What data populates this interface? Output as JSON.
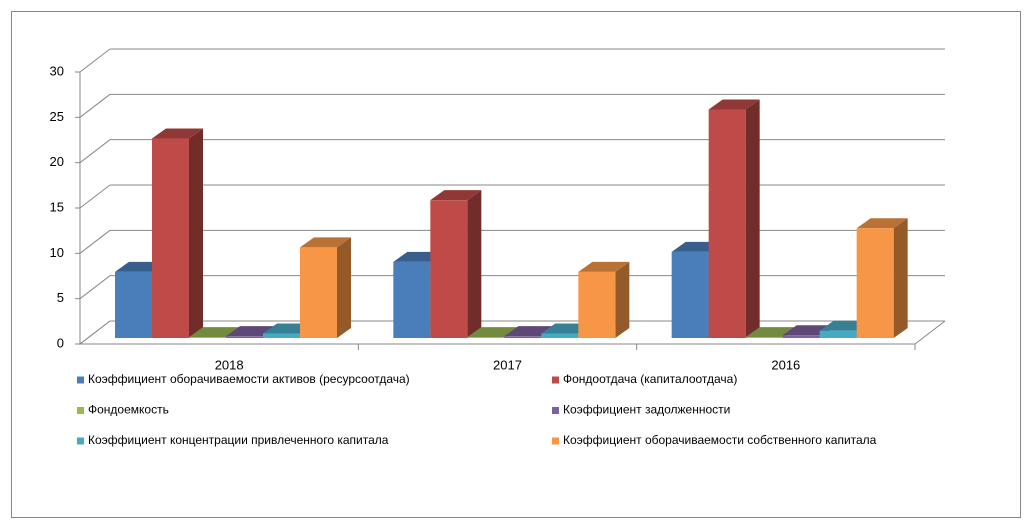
{
  "chart_data": {
    "type": "bar3d",
    "categories": [
      "2018",
      "2017",
      "2016"
    ],
    "series": [
      {
        "name": "Коэффициент оборачиваемости активов (ресурсоотдача)",
        "color": "#4a7ebb",
        "values": [
          7.3,
          8.4,
          9.5
        ]
      },
      {
        "name": "Фондоотдача (капиталоотдача)",
        "color": "#be4b48",
        "values": [
          22.0,
          15.2,
          25.2
        ]
      },
      {
        "name": "Фондоемкость",
        "color": "#98b954",
        "values": [
          0.1,
          0.1,
          0.1
        ]
      },
      {
        "name": "Коэффициент задолженности",
        "color": "#7d60a0",
        "values": [
          0.2,
          0.2,
          0.3
        ]
      },
      {
        "name": "Коэффициент концентрации привлеченного капитала",
        "color": "#46aac5",
        "values": [
          0.5,
          0.5,
          0.8
        ]
      },
      {
        "name": "Коэффициент оборачиваемости собственного капитала",
        "color": "#f79646",
        "values": [
          10.0,
          7.3,
          12.1
        ]
      }
    ],
    "ylim": [
      0,
      30
    ],
    "yticks": [
      0,
      5,
      10,
      15,
      20,
      25,
      30
    ],
    "grid": true
  }
}
